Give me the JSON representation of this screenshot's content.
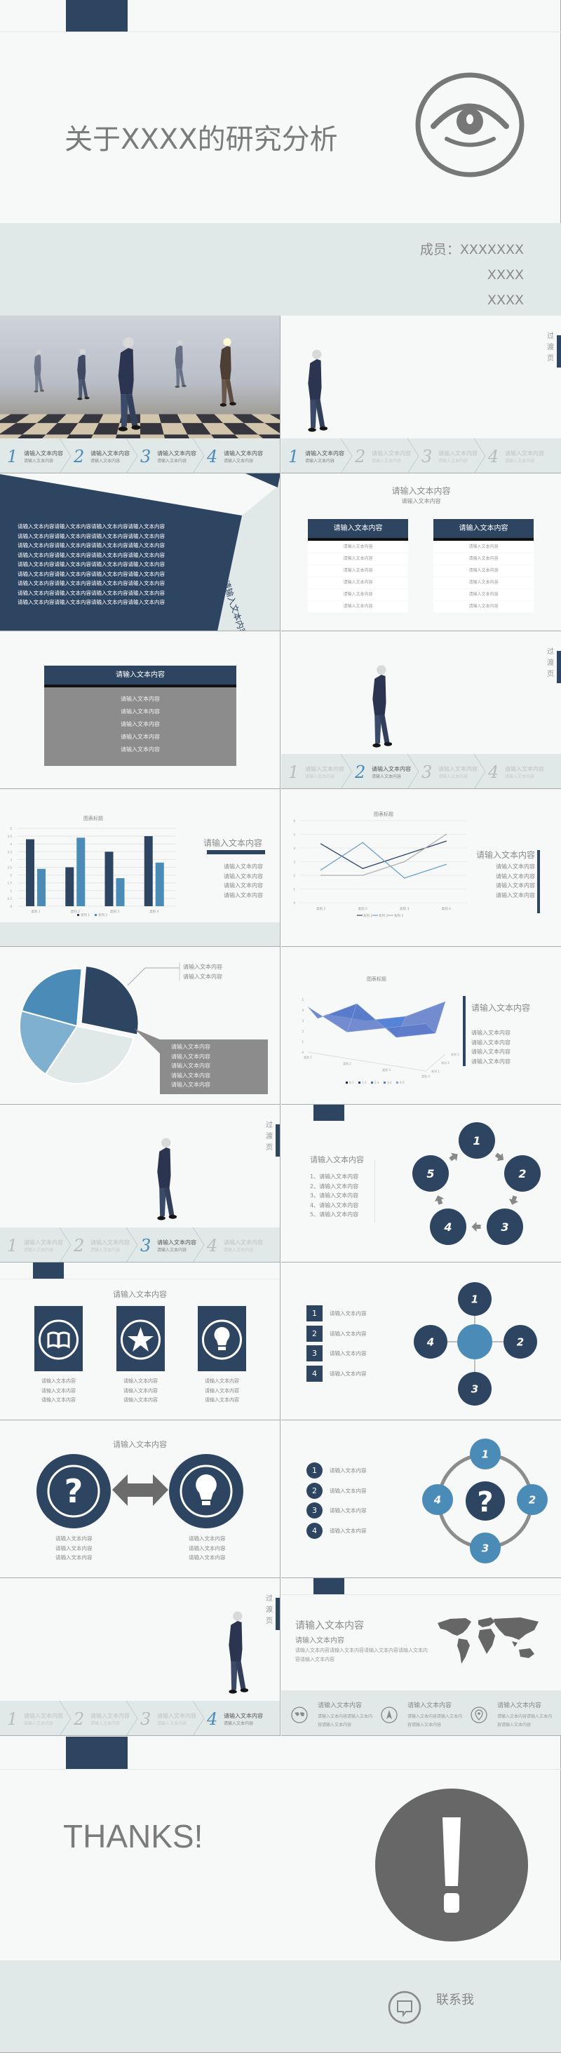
{
  "colors": {
    "navy": "#2e4562",
    "blue": "#4a8bb8",
    "light_blue": "#7fb0cf",
    "band": "#e0e8e8",
    "gray": "#8c8c8c",
    "icon_gray": "#6b6b6b"
  },
  "title_slide": {
    "title": "关于XXXX的研究分析",
    "members": [
      "成员：XXXXXXX",
      "XXXX",
      "XXXX"
    ],
    "icon": "eye-icon"
  },
  "transition_label": "过渡页",
  "stepper": {
    "steps": [
      {
        "num": "1",
        "title": "请输入文本内容",
        "sub": "请输入文本内容"
      },
      {
        "num": "2",
        "title": "请输入文本内容",
        "sub": "请输入文本内容"
      },
      {
        "num": "3",
        "title": "请输入文本内容",
        "sub": "请输入文本内容"
      },
      {
        "num": "4",
        "title": "请输入文本内容",
        "sub": "请输入文本内容"
      }
    ]
  },
  "slide_text_block": {
    "lines": [
      "请输入文本内容请输入文本内容请输入文本内容请输入文本内容",
      "请输入文本内容请输入文本内容请输入文本内容请输入文本内容",
      "请输入文本内容请输入文本内容请输入文本内容请输入文本内容",
      "请输入文本内容请输入文本内容请输入文本内容请输入文本内容",
      "请输入文本内容请输入文本内容请输入文本内容请输入文本内容",
      "请输入文本内容请输入文本内容请输入文本内容请输入文本内容",
      "请输入文本内容请输入文本内容请输入文本内容请输入文本内容",
      "请输入文本内容请输入文本内容请输入文本内容请输入文本内容",
      "请输入文本内容请输入文本内容请输入文本内容请输入文本内容"
    ],
    "side_title": "请输入文本内容"
  },
  "slide_tables": {
    "title": "请输入文本内容",
    "subtitle": "请输入文本内容",
    "tables": [
      {
        "header": "请输入文本内容",
        "rows": [
          "请输入文本内容",
          "请输入文本内容",
          "请输入文本内容",
          "请输入文本内容",
          "请输入文本内容",
          "请输入文本内容"
        ]
      },
      {
        "header": "请输入文本内容",
        "rows": [
          "请输入文本内容",
          "请输入文本内容",
          "请输入文本内容",
          "请输入文本内容",
          "请输入文本内容",
          "请输入文本内容"
        ]
      }
    ]
  },
  "slide_gray_box": {
    "header": "请输入文本内容",
    "items": [
      "请输入文本内容",
      "请输入文本内容",
      "请输入文本内容",
      "请输入文本内容",
      "请输入文本内容"
    ]
  },
  "slide_bar": {
    "side_title": "请输入文本内容",
    "items": [
      "请输入文本内容",
      "请输入文本内容",
      "请输入文本内容",
      "请输入文本内容"
    ]
  },
  "slide_line": {
    "side_title": "请输入文本内容",
    "items": [
      "请输入文本内容",
      "请输入文本内容",
      "请输入文本内容",
      "请输入文本内容"
    ]
  },
  "slide_pie": {
    "callout_lines": [
      "请输入文本内容",
      "请输入文本内容"
    ],
    "box_items": [
      "请输入文本内容",
      "请输入文本内容",
      "请输入文本内容",
      "请输入文本内容",
      "请输入文本内容"
    ]
  },
  "slide_surface": {
    "side_title": "请输入文本内容",
    "items": [
      "请输入文本内容",
      "请输入文本内容",
      "请输入文本内容",
      "请输入文本内容"
    ]
  },
  "chart_data": [
    {
      "type": "bar",
      "title": "图表标题",
      "categories": [
        "类别 1",
        "类别 2",
        "类别 3",
        "类别 4"
      ],
      "series": [
        {
          "name": "系列 1",
          "values": [
            4.3,
            2.5,
            3.5,
            4.5
          ],
          "color": "#2e4562"
        },
        {
          "name": "系列 2",
          "values": [
            2.4,
            4.4,
            1.8,
            2.8
          ],
          "color": "#4a8bb8"
        }
      ],
      "yticks": [
        "0",
        "0.5",
        "1",
        "1.5",
        "2",
        "2.5",
        "3",
        "3.5",
        "4",
        "4.5",
        "5"
      ],
      "ylim": [
        0,
        5
      ],
      "grid": true,
      "legend": "bottom"
    },
    {
      "type": "line",
      "title": "图表标题",
      "categories": [
        "类别 1",
        "类别 2",
        "类别 3",
        "类别 4"
      ],
      "series": [
        {
          "name": "系列 1",
          "values": [
            4.3,
            2.5,
            3.5,
            4.5
          ],
          "color": "#2e4562"
        },
        {
          "name": "系列 2",
          "values": [
            2.4,
            4.4,
            1.8,
            2.8
          ],
          "color": "#6fa3c8"
        },
        {
          "name": "系列 3",
          "values": [
            2,
            2,
            3,
            5
          ],
          "color": "#b0b0b0"
        }
      ],
      "yticks": [
        "0",
        "1",
        "2",
        "3",
        "4",
        "5",
        "6"
      ],
      "ylim": [
        0,
        6
      ],
      "grid": true,
      "legend": "bottom"
    },
    {
      "type": "pie",
      "values": [
        27,
        31,
        20,
        22
      ],
      "colors": [
        "#2e4562",
        "#e0e8e8",
        "#7fb0cf",
        "#4a8bb8"
      ],
      "exploded": [
        true,
        false,
        false,
        false
      ]
    },
    {
      "type": "area",
      "subtype": "3d-surface",
      "title": "图表标题",
      "categories": [
        "类别 1",
        "类别 2",
        "类别 3",
        "类别 4"
      ],
      "series": [
        {
          "name": "系列 1",
          "values": [
            4.3,
            2.5,
            3.5,
            4.5
          ]
        },
        {
          "name": "系列 2",
          "values": [
            2.4,
            4.4,
            1.8,
            2.8
          ]
        },
        {
          "name": "系列 3",
          "values": [
            2,
            2,
            3,
            5
          ]
        }
      ],
      "yticks": [
        "0",
        "1",
        "2",
        "3",
        "4",
        "5"
      ],
      "legend_bands": [
        "0-1",
        "1-2",
        "2-3",
        "3-4",
        "4-5"
      ],
      "band_colors": [
        "#1f2d4a",
        "#2c4377",
        "#3a6fd0",
        "#5a79c8",
        "#8aa2dc"
      ],
      "legend": "bottom"
    }
  ],
  "slide_cycle": {
    "title": "请输入文本内容",
    "items": [
      "1、请输入文本内容",
      "2、请输入文本内容",
      "3、请输入文本内容",
      "4、请输入文本内容",
      "5、请输入文本内容"
    ],
    "nodes": [
      "1",
      "2",
      "3",
      "4",
      "5"
    ]
  },
  "slide_icons": {
    "title": "请输入文本内容",
    "cards": [
      {
        "icon": "book-icon",
        "lines": [
          "请输入文本内容",
          "请输入文本内容",
          "请输入文本内容"
        ]
      },
      {
        "icon": "star-icon",
        "lines": [
          "请输入文本内容",
          "请输入文本内容",
          "请输入文本内容"
        ]
      },
      {
        "icon": "lightbulb-icon",
        "lines": [
          "请输入文本内容",
          "请输入文本内容",
          "请输入文本内容"
        ]
      }
    ]
  },
  "slide_cross": {
    "items": [
      {
        "num": "1",
        "label": "请输入文本内容"
      },
      {
        "num": "2",
        "label": "请输入文本内容"
      },
      {
        "num": "3",
        "label": "请输入文本内容"
      },
      {
        "num": "4",
        "label": "请输入文本内容"
      }
    ],
    "nodes": [
      "1",
      "2",
      "3",
      "4"
    ]
  },
  "slide_compare": {
    "title": "请输入文本内容",
    "left_lines": [
      "请输入文本内容",
      "请输入文本内容",
      "请输入文本内容"
    ],
    "right_lines": [
      "请输入文本内容",
      "请输入文本内容",
      "请输入文本内容"
    ]
  },
  "slide_ring": {
    "items": [
      {
        "num": "1",
        "label": "请输入文本内容"
      },
      {
        "num": "2",
        "label": "请输入文本内容"
      },
      {
        "num": "3",
        "label": "请输入文本内容"
      },
      {
        "num": "4",
        "label": "请输入文本内容"
      }
    ],
    "nodes": [
      "1",
      "2",
      "3",
      "4"
    ],
    "center": "?"
  },
  "slide_map": {
    "title": "请输入文本内容",
    "subtitle": "请输入文本内容",
    "paragraph": "请输入文本内容请输入文本内容请输入文本内容请输入文本内容请输入文本内容",
    "features": [
      {
        "icon": "map-icon",
        "title": "请输入文本内容",
        "text": "请输入文本内容请输入文本内容请输入文本内容"
      },
      {
        "icon": "navigation-icon",
        "title": "请输入文本内容",
        "text": "请输入文本内容请输入文本内容请输入文本内容"
      },
      {
        "icon": "location-pin-icon",
        "title": "请输入文本内容",
        "text": "请输入文本内容请输入文本内容请输入文本内容"
      }
    ]
  },
  "slide_thanks": {
    "title": "THANKS!",
    "contact": "联系我",
    "icon": "exclamation-icon"
  }
}
